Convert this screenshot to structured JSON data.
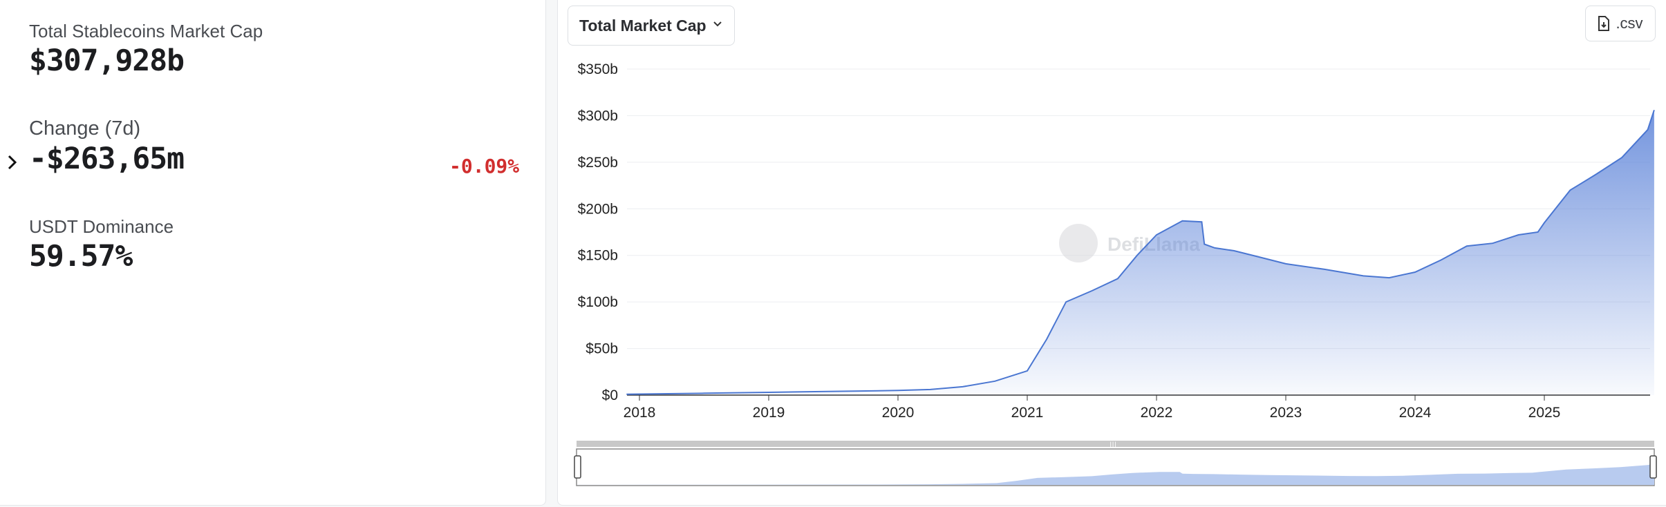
{
  "stats": {
    "total_label": "Total Stablecoins Market Cap",
    "total_value": "$307,928b",
    "change_label": "Change (7d)",
    "change_value": "-$263,65m",
    "change_pct": "-0.09%",
    "dominance_label": "USDT Dominance",
    "dominance_value": "59.57%"
  },
  "controls": {
    "metric_select": "Total Market Cap",
    "csv_label": ".csv"
  },
  "watermark": "DefiLlama",
  "colors": {
    "line": "#4a76d1",
    "fill": "#5b82d8",
    "negative": "#d12e2e"
  },
  "icons": [
    "chevron-right-icon",
    "chevron-down-icon",
    "file-download-icon",
    "llama-logo"
  ],
  "chart_data": {
    "type": "area",
    "series": [
      {
        "x": [
          2017.9,
          2018.5,
          2019.0,
          2019.5,
          2020.0,
          2020.25,
          2020.5,
          2020.75,
          2021.0,
          2021.15,
          2021.3,
          2021.5,
          2021.7,
          2021.85,
          2022.0,
          2022.2,
          2022.35,
          2022.37,
          2022.45,
          2022.6,
          2022.8,
          2023.0,
          2023.3,
          2023.6,
          2023.8,
          2024.0,
          2024.2,
          2024.4,
          2024.6,
          2024.8,
          2024.95,
          2025.0,
          2025.2,
          2025.4,
          2025.6,
          2025.8,
          2025.85
        ],
        "y": [
          1,
          2,
          3,
          4,
          5,
          6,
          9,
          15,
          26,
          60,
          100,
          112,
          125,
          150,
          172,
          187,
          186,
          162,
          158,
          155,
          148,
          141,
          135,
          128,
          126,
          132,
          145,
          160,
          163,
          172,
          175,
          185,
          220,
          237,
          255,
          285,
          306
        ]
      }
    ],
    "xticks": [
      "2018",
      "2019",
      "2020",
      "2021",
      "2022",
      "2023",
      "2024",
      "2025"
    ],
    "yticks": [
      "$0",
      "$50b",
      "$100b",
      "$150b",
      "$200b",
      "$250b",
      "$300b",
      "$350b"
    ],
    "ylim": [
      0,
      350
    ],
    "xlim": [
      2017.9,
      2025.85
    ],
    "grid": true,
    "legend": "none"
  }
}
